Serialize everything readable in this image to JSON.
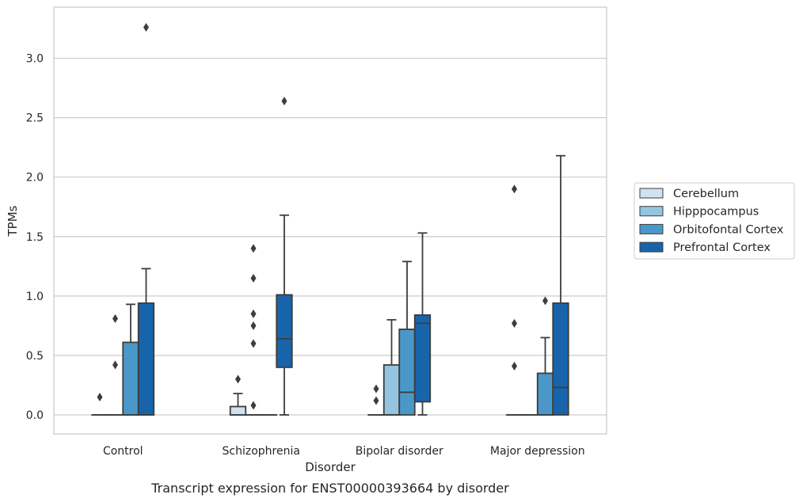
{
  "chart_data": {
    "type": "box",
    "title": "",
    "caption": "Transcript expression for ENST00000393664 by disorder",
    "xlabel": "Disorder",
    "ylabel": "TPMs",
    "ylim": [
      -0.16,
      3.43
    ],
    "yticks": [
      "0.0",
      "0.5",
      "1.0",
      "1.5",
      "2.0",
      "2.5",
      "3.0"
    ],
    "grid": "horizontal",
    "legend_position": "right",
    "categories": [
      "Control",
      "Schizophrenia",
      "Bipolar disorder",
      "Major depression"
    ],
    "series": [
      {
        "name": "Cerebellum",
        "color": "#d0e1f2",
        "boxes": [
          {
            "q1": 0,
            "median": 0,
            "q3": 0,
            "whislo": 0,
            "whishi": 0,
            "fliers": [
              0.15
            ]
          },
          {
            "q1": 0,
            "median": 0,
            "q3": 0.07,
            "whislo": 0,
            "whishi": 0.18,
            "fliers": [
              0.3
            ]
          },
          {
            "q1": 0,
            "median": 0,
            "q3": 0,
            "whislo": 0,
            "whishi": 0,
            "fliers": [
              0.12,
              0.22
            ]
          },
          {
            "q1": 0,
            "median": 0,
            "q3": 0,
            "whislo": 0,
            "whishi": 0,
            "fliers": [
              0.41,
              0.77,
              1.9
            ]
          }
        ]
      },
      {
        "name": "Hipppocampus",
        "color": "#94c4df",
        "boxes": [
          {
            "q1": 0,
            "median": 0,
            "q3": 0,
            "whislo": 0,
            "whishi": 0,
            "fliers": [
              0.42,
              0.81
            ]
          },
          {
            "q1": 0,
            "median": 0,
            "q3": 0,
            "whislo": 0,
            "whishi": 0,
            "fliers": [
              0.08,
              0.6,
              0.75,
              0.85,
              1.15,
              1.4
            ]
          },
          {
            "q1": 0,
            "median": 0,
            "q3": 0.42,
            "whislo": 0,
            "whishi": 0.8,
            "fliers": []
          },
          {
            "q1": 0,
            "median": 0,
            "q3": 0,
            "whislo": 0,
            "whishi": 0,
            "fliers": []
          }
        ]
      },
      {
        "name": "Orbitofontal Cortex",
        "color": "#4a98c9",
        "boxes": [
          {
            "q1": 0,
            "median": 0,
            "q3": 0.61,
            "whislo": 0,
            "whishi": 0.93,
            "fliers": []
          },
          {
            "q1": 0,
            "median": 0,
            "q3": 0,
            "whislo": 0,
            "whishi": 0,
            "fliers": []
          },
          {
            "q1": 0,
            "median": 0.19,
            "q3": 0.72,
            "whislo": 0,
            "whishi": 1.29,
            "fliers": []
          },
          {
            "q1": 0,
            "median": 0,
            "q3": 0.35,
            "whislo": 0,
            "whishi": 0.65,
            "fliers": [
              0.96
            ]
          }
        ]
      },
      {
        "name": "Prefrontal Cortex",
        "color": "#1764ab",
        "boxes": [
          {
            "q1": 0,
            "median": 0,
            "q3": 0.94,
            "whislo": 0,
            "whishi": 1.23,
            "fliers": [
              3.26
            ]
          },
          {
            "q1": 0.4,
            "median": 0.64,
            "q3": 1.01,
            "whislo": 0,
            "whishi": 1.68,
            "fliers": [
              2.64
            ]
          },
          {
            "q1": 0.11,
            "median": 0.77,
            "q3": 0.84,
            "whislo": 0,
            "whishi": 1.53,
            "fliers": []
          },
          {
            "q1": 0,
            "median": 0.23,
            "q3": 0.94,
            "whislo": 0,
            "whishi": 2.18,
            "fliers": []
          }
        ]
      }
    ]
  }
}
